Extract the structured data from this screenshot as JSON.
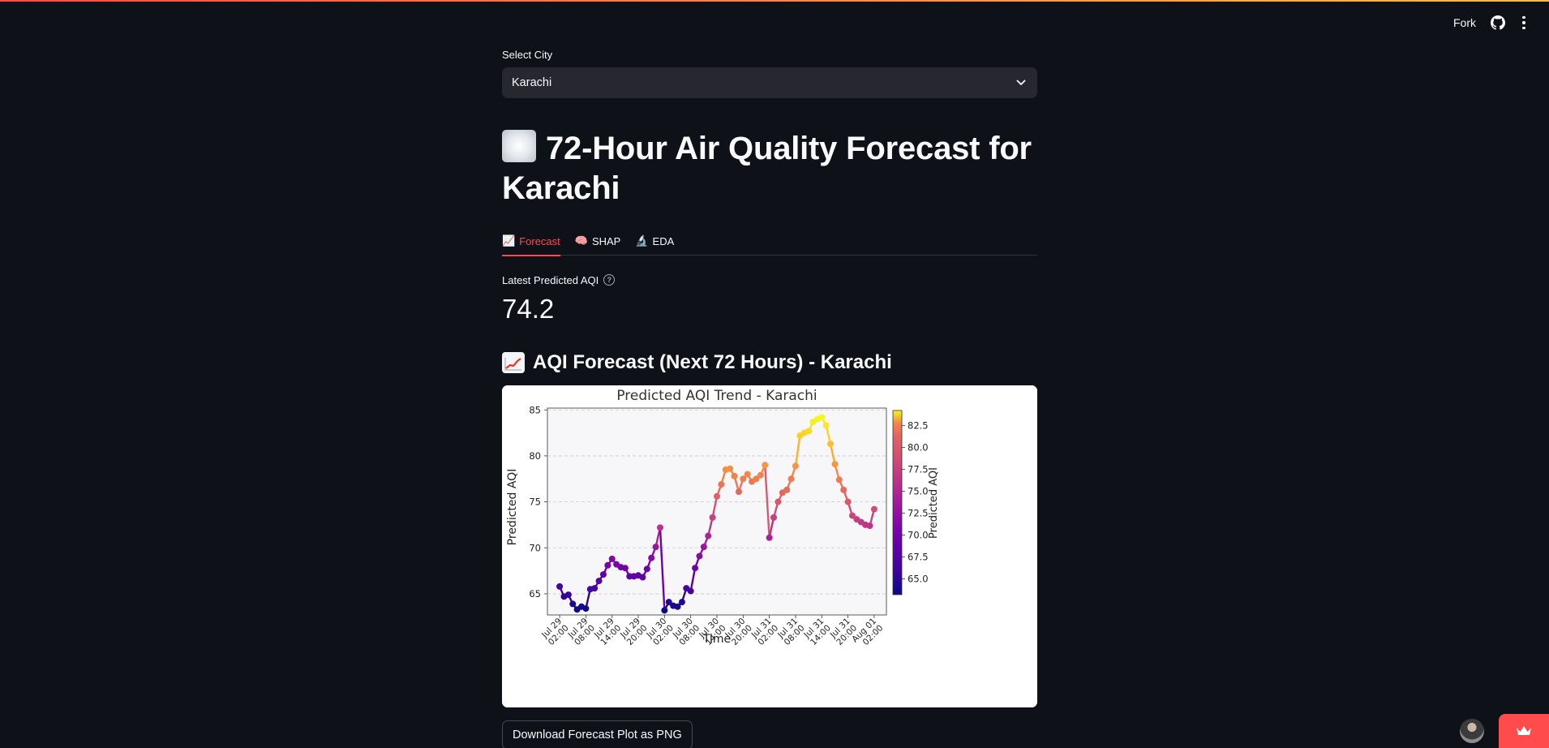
{
  "header": {
    "fork_label": "Fork",
    "github_icon": "github-icon",
    "menu_icon": "kebab-menu-icon"
  },
  "city_select": {
    "label": "Select City",
    "value": "Karachi"
  },
  "page_title": "72-Hour Air Quality Forecast for Karachi",
  "tabs": [
    {
      "label": "Forecast",
      "emoji": "📈",
      "active": true
    },
    {
      "label": "SHAP",
      "emoji": "🧠",
      "active": false
    },
    {
      "label": "EDA",
      "emoji": "🔬",
      "active": false
    }
  ],
  "metric": {
    "label": "Latest Predicted AQI",
    "value": "74.2"
  },
  "section_title": "AQI Forecast (Next 72 Hours) - Karachi",
  "download_label": "Download Forecast Plot as PNG",
  "colors": {
    "accent": "#ff4b4b",
    "background": "#0e1117",
    "select_bg": "#262730"
  },
  "chart_data": {
    "type": "line",
    "title": "Predicted AQI Trend - Karachi",
    "xlabel": "Time",
    "ylabel": "Predicted AQI",
    "ylim": [
      62.7,
      85.2
    ],
    "y_ticks": [
      65,
      70,
      75,
      80,
      85
    ],
    "x_tick_labels": [
      [
        "Jul 29",
        "02:00"
      ],
      [
        "Jul 29",
        "08:00"
      ],
      [
        "Jul 29",
        "14:00"
      ],
      [
        "Jul 29",
        "20:00"
      ],
      [
        "Jul 30",
        "02:00"
      ],
      [
        "Jul 30",
        "08:00"
      ],
      [
        "Jul 30",
        "14:00"
      ],
      [
        "Jul 30",
        "20:00"
      ],
      [
        "Jul 31",
        "02:00"
      ],
      [
        "Jul 31",
        "08:00"
      ],
      [
        "Jul 31",
        "14:00"
      ],
      [
        "Jul 31",
        "20:00"
      ],
      [
        "Aug 01",
        "02:00"
      ]
    ],
    "x_tick_hours": [
      0,
      6,
      12,
      18,
      24,
      30,
      36,
      42,
      48,
      54,
      60,
      66,
      72
    ],
    "grid": "y dashed",
    "colormap": "plasma",
    "colorbar": {
      "label": "Predicted AQI",
      "range": [
        63.2,
        84.2
      ],
      "ticks": [
        65.0,
        67.5,
        70.0,
        72.5,
        75.0,
        77.5,
        80.0,
        82.5
      ]
    },
    "series": [
      {
        "hours": [
          0,
          1,
          2,
          3,
          4,
          5,
          6,
          7,
          8,
          9,
          10,
          11,
          12,
          13,
          14,
          15,
          16,
          17,
          18,
          19,
          20,
          21,
          22,
          23,
          24,
          25,
          26,
          27,
          28,
          29,
          30,
          31,
          32,
          33,
          34,
          35,
          36,
          37,
          38,
          39,
          40,
          41,
          42,
          43,
          44,
          45,
          46,
          47,
          48,
          49,
          50,
          51,
          52,
          53,
          54,
          55,
          56,
          57,
          58,
          59,
          60,
          61,
          62,
          63,
          64,
          65,
          66,
          67,
          68,
          69,
          70,
          71,
          72
        ],
        "values": [
          65.8,
          64.7,
          64.9,
          63.9,
          63.3,
          63.6,
          63.4,
          65.5,
          65.6,
          66.4,
          67.1,
          68.1,
          68.8,
          68.2,
          67.9,
          67.8,
          66.9,
          66.9,
          67.0,
          66.8,
          67.7,
          68.9,
          70.1,
          72.2,
          63.2,
          64.1,
          63.7,
          63.6,
          64.1,
          65.6,
          65.3,
          67.8,
          69.1,
          70.1,
          71.3,
          73.3,
          75.6,
          76.9,
          78.5,
          78.6,
          77.8,
          76.1,
          77.5,
          78.0,
          77.2,
          77.5,
          77.9,
          79.0,
          71.1,
          73.3,
          75.0,
          76.0,
          76.3,
          77.5,
          78.9,
          82.2,
          82.5,
          82.7,
          83.7,
          84.0,
          84.2,
          83.3,
          81.3,
          79.1,
          77.4,
          76.3,
          75.0,
          73.5,
          73.1,
          72.8,
          72.5,
          72.4,
          74.2
        ]
      }
    ]
  }
}
